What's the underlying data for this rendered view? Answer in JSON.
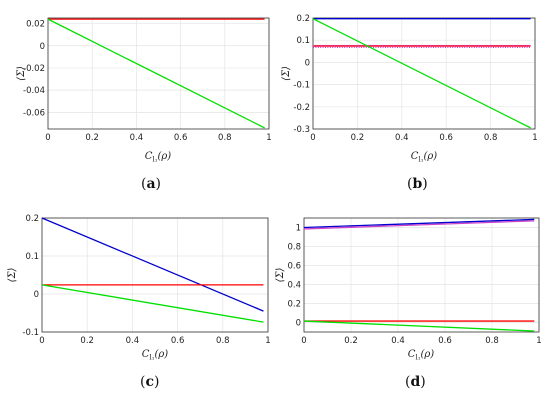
{
  "chart_data": [
    {
      "type": "line",
      "caption": "(a)",
      "xlabel": "C_{l1}(ρ)",
      "ylabel": "⟨Σ⟩",
      "xlim": [
        0,
        1
      ],
      "ylim": [
        -0.075,
        0.025
      ],
      "xticks": [
        0,
        0.2,
        0.4,
        0.6,
        0.8,
        1
      ],
      "xtick_labels": [
        "0",
        "0.2",
        "0.4",
        "0.6",
        "0.8",
        "1"
      ],
      "yticks": [
        0.02,
        0,
        -0.02,
        -0.04,
        -0.06
      ],
      "ytick_labels": [
        "0.02",
        "0",
        "-0.02",
        "-0.04",
        "-0.06"
      ],
      "grid": true,
      "series": [
        {
          "color": "#ff0000",
          "x": [
            0,
            0.98
          ],
          "y": [
            0.024,
            0.024
          ]
        },
        {
          "color": "#00e000",
          "x": [
            0,
            0.98
          ],
          "y": [
            0.024,
            -0.074
          ]
        }
      ]
    },
    {
      "type": "line",
      "caption": "(b)",
      "xlabel": "C_{l1}(ρ)",
      "ylabel": "⟨Σ⟩",
      "xlim": [
        0,
        1
      ],
      "ylim": [
        -0.3,
        0.2
      ],
      "xticks": [
        0,
        0.2,
        0.4,
        0.6,
        0.8,
        1
      ],
      "xtick_labels": [
        "0",
        "0.2",
        "0.4",
        "0.6",
        "0.8",
        "1"
      ],
      "yticks": [
        0.2,
        0.1,
        0,
        -0.1,
        -0.2,
        -0.3
      ],
      "ytick_labels": [
        "0.2",
        "0.1",
        "0",
        "-0.1",
        "-0.2",
        "-0.3"
      ],
      "grid": true,
      "series": [
        {
          "color": "#0000cc",
          "x": [
            0,
            0.98
          ],
          "y": [
            0.197,
            0.197
          ]
        },
        {
          "color": "#ff0000",
          "x": [
            0,
            0.98
          ],
          "y": [
            0.075,
            0.075
          ]
        },
        {
          "color": "#cc44cc",
          "x": [
            0,
            0.98
          ],
          "y": [
            0.072,
            0.072
          ],
          "dotted": true
        },
        {
          "color": "#00e000",
          "x": [
            0,
            0.98
          ],
          "y": [
            0.197,
            -0.295
          ]
        }
      ]
    },
    {
      "type": "line",
      "caption": "(c)",
      "xlabel": "C_{l1}(ρ)",
      "ylabel": "⟨Σ⟩",
      "xlim": [
        0,
        1
      ],
      "ylim": [
        -0.1,
        0.2
      ],
      "xticks": [
        0,
        0.2,
        0.4,
        0.6,
        0.8,
        1
      ],
      "xtick_labels": [
        "0",
        "0.2",
        "0.4",
        "0.6",
        "0.8",
        "1"
      ],
      "yticks": [
        0.2,
        0.1,
        0,
        -0.1
      ],
      "ytick_labels": [
        "0.2",
        "0.1",
        "0",
        "-0.1"
      ],
      "grid": true,
      "series": [
        {
          "color": "#0000cc",
          "x": [
            0,
            0.98
          ],
          "y": [
            0.2,
            -0.045
          ]
        },
        {
          "color": "#ff0000",
          "x": [
            0,
            0.98
          ],
          "y": [
            0.024,
            0.024
          ]
        },
        {
          "color": "#00e000",
          "x": [
            0,
            0.98
          ],
          "y": [
            0.024,
            -0.074
          ]
        }
      ]
    },
    {
      "type": "line",
      "caption": "(d)",
      "xlabel": "C_{l1}(ρ)",
      "ylabel": "⟨Σ⟩",
      "xlim": [
        0,
        1
      ],
      "ylim": [
        -0.1,
        1.1
      ],
      "xticks": [
        0,
        0.2,
        0.4,
        0.6,
        0.8,
        1
      ],
      "xtick_labels": [
        "0",
        "0.2",
        "0.4",
        "0.6",
        "0.8",
        "1"
      ],
      "yticks": [
        1,
        0.8,
        0.6,
        0.4,
        0.2,
        0
      ],
      "ytick_labels": [
        "1",
        "0.8",
        "0.6",
        "0.4",
        "0.2",
        "0"
      ],
      "grid": true,
      "series": [
        {
          "color": "#0000cc",
          "x": [
            0,
            0.98
          ],
          "y": [
            1.0,
            1.085
          ]
        },
        {
          "color": "#cc44cc",
          "x": [
            0,
            0.98
          ],
          "y": [
            0.985,
            1.07
          ]
        },
        {
          "color": "#ff0000",
          "x": [
            0,
            0.98
          ],
          "y": [
            0.015,
            0.015
          ]
        },
        {
          "color": "#00e000",
          "x": [
            0,
            0.98
          ],
          "y": [
            0.015,
            -0.09
          ]
        }
      ]
    }
  ]
}
